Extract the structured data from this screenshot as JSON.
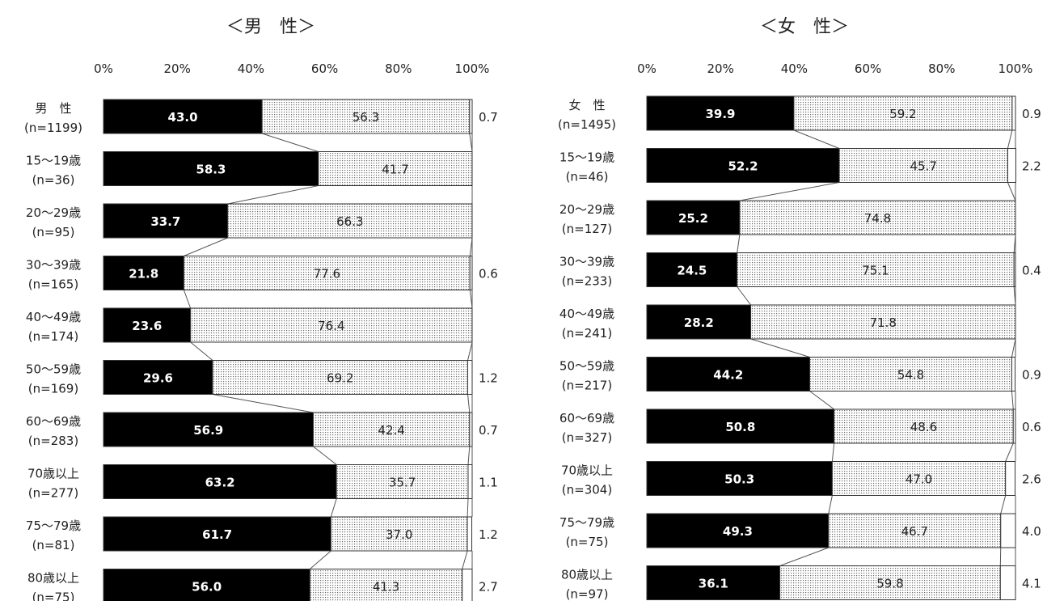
{
  "chart_data": [
    {
      "type": "bar",
      "stacked": true,
      "orientation": "horizontal",
      "title": "＜男　性＞",
      "ticks": [
        "0%",
        "20%",
        "40%",
        "60%",
        "80%",
        "100%"
      ],
      "xlim": [
        0,
        100
      ],
      "categories": [
        {
          "name": "男　性",
          "n": "(n=1199)"
        },
        {
          "name": "15～19歳",
          "n": "(n=36)"
        },
        {
          "name": "20～29歳",
          "n": "(n=95)"
        },
        {
          "name": "30～39歳",
          "n": "(n=165)"
        },
        {
          "name": "40～49歳",
          "n": "(n=174)"
        },
        {
          "name": "50～59歳",
          "n": "(n=169)"
        },
        {
          "name": "60～69歳",
          "n": "(n=283)"
        },
        {
          "name": "70歳以上",
          "n": "(n=277)"
        },
        {
          "name": "75～79歳",
          "n": "(n=81)"
        },
        {
          "name": "80歳以上",
          "n": "(n=75)"
        }
      ],
      "series": [
        {
          "values": [
            43.0,
            58.3,
            33.7,
            21.8,
            23.6,
            29.6,
            56.9,
            63.2,
            61.7,
            56.0
          ],
          "labels": [
            "43.0",
            "58.3",
            "33.7",
            "21.8",
            "23.6",
            "29.6",
            "56.9",
            "63.2",
            "61.7",
            "56.0"
          ],
          "color": "#000000"
        },
        {
          "values": [
            56.3,
            41.7,
            66.3,
            77.6,
            76.4,
            69.2,
            42.4,
            35.7,
            37.0,
            41.3
          ],
          "labels": [
            "56.3",
            "41.7",
            "66.3",
            "77.6",
            "76.4",
            "69.2",
            "42.4",
            "35.7",
            "37.0",
            "41.3"
          ],
          "color": "dotted"
        },
        {
          "values": [
            0.7,
            0,
            0,
            0.6,
            0,
            1.2,
            0.7,
            1.1,
            1.2,
            2.7
          ],
          "labels": [
            "0.7",
            "",
            "",
            "0.6",
            "",
            "1.2",
            "0.7",
            "1.1",
            "1.2",
            "2.7"
          ],
          "color": "#ffffff"
        }
      ]
    },
    {
      "type": "bar",
      "stacked": true,
      "orientation": "horizontal",
      "title": "＜女　性＞",
      "ticks": [
        "0%",
        "20%",
        "40%",
        "60%",
        "80%",
        "100%"
      ],
      "xlim": [
        0,
        100
      ],
      "categories": [
        {
          "name": "女　性",
          "n": "(n=1495)"
        },
        {
          "name": "15～19歳",
          "n": "(n=46)"
        },
        {
          "name": "20～29歳",
          "n": "(n=127)"
        },
        {
          "name": "30～39歳",
          "n": "(n=233)"
        },
        {
          "name": "40～49歳",
          "n": "(n=241)"
        },
        {
          "name": "50～59歳",
          "n": "(n=217)"
        },
        {
          "name": "60～69歳",
          "n": "(n=327)"
        },
        {
          "name": "70歳以上",
          "n": "(n=304)"
        },
        {
          "name": "75～79歳",
          "n": "(n=75)"
        },
        {
          "name": "80歳以上",
          "n": "(n=97)"
        }
      ],
      "series": [
        {
          "values": [
            39.9,
            52.2,
            25.2,
            24.5,
            28.2,
            44.2,
            50.8,
            50.3,
            49.3,
            36.1
          ],
          "labels": [
            "39.9",
            "52.2",
            "25.2",
            "24.5",
            "28.2",
            "44.2",
            "50.8",
            "50.3",
            "49.3",
            "36.1"
          ],
          "color": "#000000"
        },
        {
          "values": [
            59.2,
            45.7,
            74.8,
            75.1,
            71.8,
            54.8,
            48.6,
            47.0,
            46.7,
            59.8
          ],
          "labels": [
            "59.2",
            "45.7",
            "74.8",
            "75.1",
            "71.8",
            "54.8",
            "48.6",
            "47.0",
            "46.7",
            "59.8"
          ],
          "color": "dotted"
        },
        {
          "values": [
            0.9,
            2.2,
            0,
            0.4,
            0,
            0.9,
            0.6,
            2.6,
            4.0,
            4.1
          ],
          "labels": [
            "0.9",
            "2.2",
            "",
            "0.4",
            "",
            "0.9",
            "0.6",
            "2.6",
            "4.0",
            "4.1"
          ],
          "color": "#ffffff"
        }
      ]
    }
  ]
}
